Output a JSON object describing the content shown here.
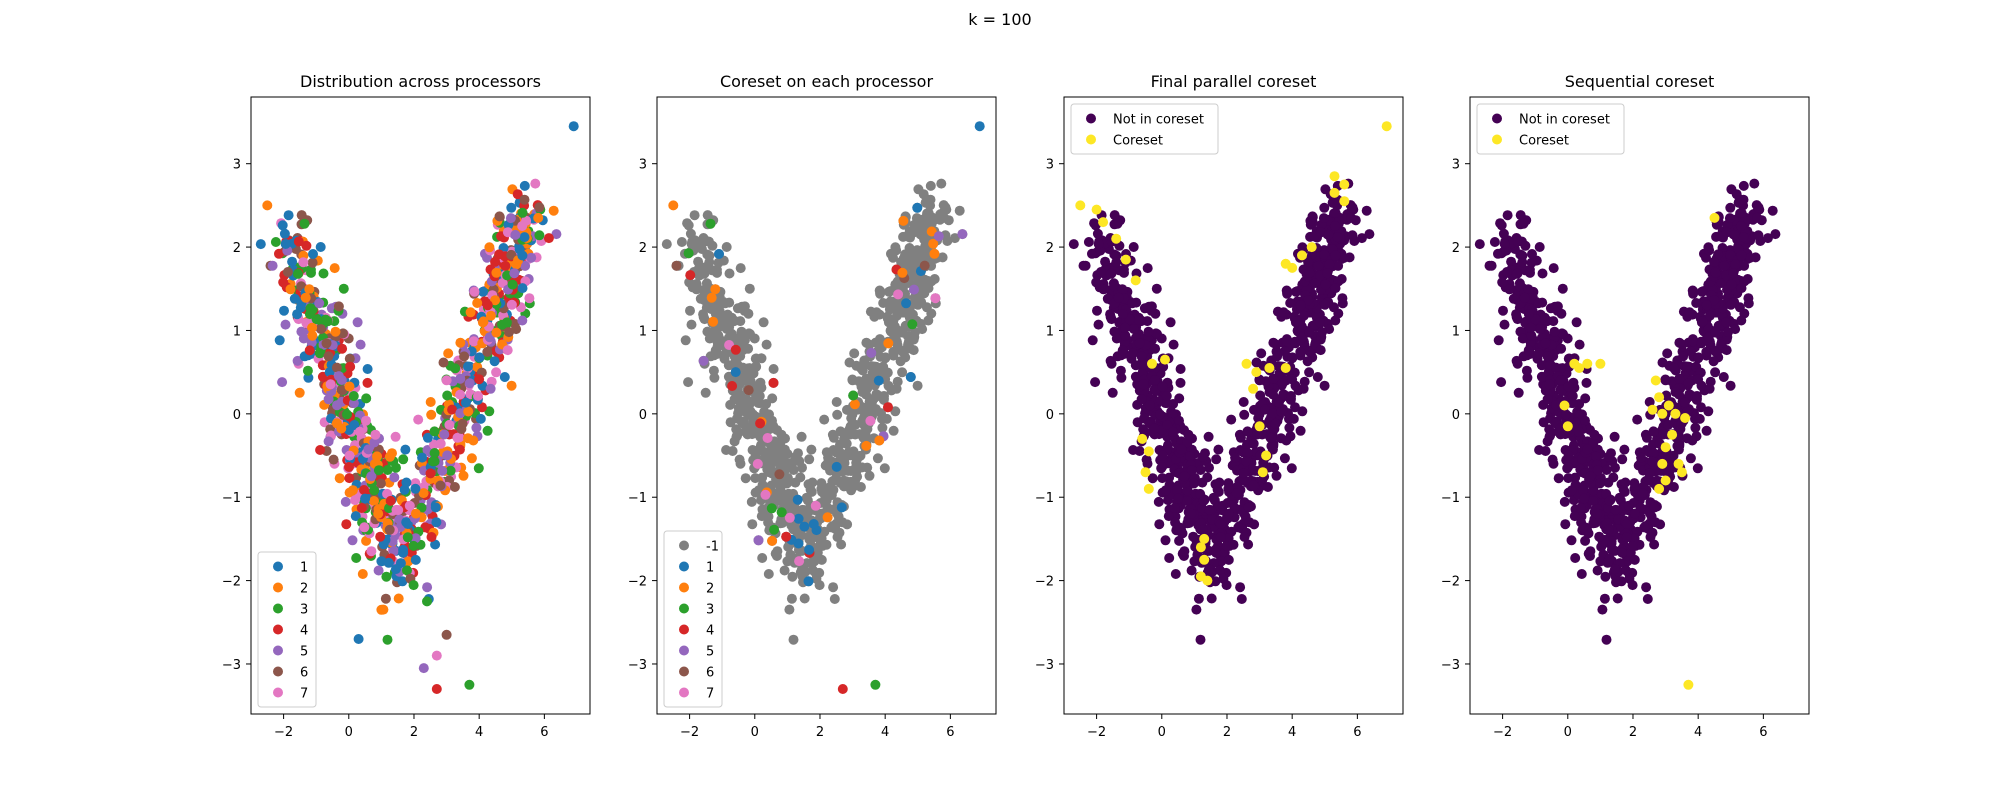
{
  "figure": {
    "suptitle": "k = 100"
  },
  "palette": {
    "tab10": [
      "#1f77b4",
      "#ff7f0e",
      "#2ca02c",
      "#d62728",
      "#9467bd",
      "#8c564b",
      "#e377c2"
    ],
    "gray": "#808080",
    "not_in_coreset": "#440154",
    "coreset": "#fde725"
  },
  "chart_data": [
    {
      "type": "scatter",
      "title": "Distribution across processors",
      "xlim": [
        -3.0,
        7.4
      ],
      "ylim": [
        -3.6,
        3.8
      ],
      "xticks": [
        -2,
        0,
        2,
        4,
        6
      ],
      "yticks": [
        -3,
        -2,
        -1,
        0,
        1,
        2,
        3
      ],
      "legend": {
        "placement": "lower-left",
        "entries": [
          "1",
          "2",
          "3",
          "4",
          "5",
          "6",
          "7"
        ]
      },
      "point_cloud": "V-shaped cloud of ~1000 points colored by processor 1–7",
      "notable_points": [
        [
          6.9,
          3.45
        ],
        [
          -2.5,
          2.5
        ],
        [
          3.7,
          -3.25
        ],
        [
          2.7,
          -3.3
        ],
        [
          2.3,
          -3.05
        ],
        [
          3.0,
          -2.65
        ],
        [
          2.7,
          -2.9
        ],
        [
          0.3,
          -2.7
        ],
        [
          1.0,
          -2.35
        ],
        [
          2.4,
          -2.25
        ]
      ]
    },
    {
      "type": "scatter",
      "title": "Coreset on each processor",
      "xlim": [
        -3.0,
        7.4
      ],
      "ylim": [
        -3.6,
        3.8
      ],
      "xticks": [
        -2,
        0,
        2,
        4,
        6
      ],
      "yticks": [
        -3,
        -2,
        -1,
        0,
        1,
        2,
        3
      ],
      "legend": {
        "placement": "lower-left",
        "entries": [
          "-1",
          "1",
          "2",
          "3",
          "4",
          "5",
          "6",
          "7"
        ]
      },
      "point_cloud": "gray (-1) points not in coreset; colored points are per-processor coreset",
      "notable_points": [
        [
          6.9,
          3.45
        ],
        [
          -2.5,
          2.5
        ],
        [
          3.7,
          -3.25
        ],
        [
          2.7,
          -3.3
        ]
      ]
    },
    {
      "type": "scatter",
      "title": "Final parallel coreset",
      "xlim": [
        -3.0,
        7.4
      ],
      "ylim": [
        -3.6,
        3.8
      ],
      "xticks": [
        -2,
        0,
        2,
        4,
        6
      ],
      "yticks": [
        -3,
        -2,
        -1,
        0,
        1,
        2,
        3
      ],
      "legend": {
        "placement": "top-left",
        "entries": [
          "Not in coreset",
          "Coreset"
        ]
      },
      "coreset_points": [
        [
          6.9,
          3.45
        ],
        [
          -2.5,
          2.5
        ],
        [
          -2.0,
          2.45
        ],
        [
          -1.8,
          2.3
        ],
        [
          -1.4,
          2.1
        ],
        [
          -1.1,
          1.85
        ],
        [
          -0.8,
          1.6
        ],
        [
          5.3,
          2.85
        ],
        [
          5.6,
          2.75
        ],
        [
          5.3,
          2.65
        ],
        [
          5.6,
          2.55
        ],
        [
          3.8,
          1.8
        ],
        [
          4.0,
          1.75
        ],
        [
          4.3,
          1.9
        ],
        [
          4.6,
          2.0
        ],
        [
          -0.3,
          0.6
        ],
        [
          0.1,
          0.65
        ],
        [
          -0.6,
          -0.3
        ],
        [
          -0.4,
          -0.45
        ],
        [
          -0.5,
          -0.7
        ],
        [
          -0.4,
          -0.9
        ],
        [
          2.6,
          0.6
        ],
        [
          2.9,
          0.5
        ],
        [
          3.3,
          0.55
        ],
        [
          3.8,
          0.55
        ],
        [
          2.8,
          0.3
        ],
        [
          3.0,
          -0.15
        ],
        [
          3.2,
          -0.5
        ],
        [
          3.1,
          -0.7
        ],
        [
          1.2,
          -1.6
        ],
        [
          1.3,
          -1.75
        ],
        [
          1.2,
          -1.95
        ],
        [
          1.4,
          -2.0
        ],
        [
          1.3,
          -1.5
        ]
      ]
    },
    {
      "type": "scatter",
      "title": "Sequential coreset",
      "xlim": [
        -3.0,
        7.4
      ],
      "ylim": [
        -3.6,
        3.8
      ],
      "xticks": [
        -2,
        0,
        2,
        4,
        6
      ],
      "yticks": [
        -3,
        -2,
        -1,
        0,
        1,
        2,
        3
      ],
      "legend": {
        "placement": "top-left",
        "entries": [
          "Not in coreset",
          "Coreset"
        ]
      },
      "coreset_points": [
        [
          3.7,
          -3.25
        ],
        [
          4.5,
          2.35
        ],
        [
          0.2,
          0.6
        ],
        [
          0.35,
          0.55
        ],
        [
          0.6,
          0.6
        ],
        [
          1.0,
          0.6
        ],
        [
          2.7,
          0.4
        ],
        [
          2.8,
          0.2
        ],
        [
          2.6,
          0.05
        ],
        [
          2.9,
          0.0
        ],
        [
          3.1,
          0.1
        ],
        [
          3.3,
          0.0
        ],
        [
          3.6,
          -0.05
        ],
        [
          3.2,
          -0.25
        ],
        [
          3.0,
          -0.4
        ],
        [
          2.9,
          -0.6
        ],
        [
          3.4,
          -0.6
        ],
        [
          3.5,
          -0.7
        ],
        [
          3.0,
          -0.8
        ],
        [
          2.8,
          -0.9
        ],
        [
          0.0,
          -0.15
        ],
        [
          -0.1,
          0.1
        ]
      ]
    }
  ]
}
